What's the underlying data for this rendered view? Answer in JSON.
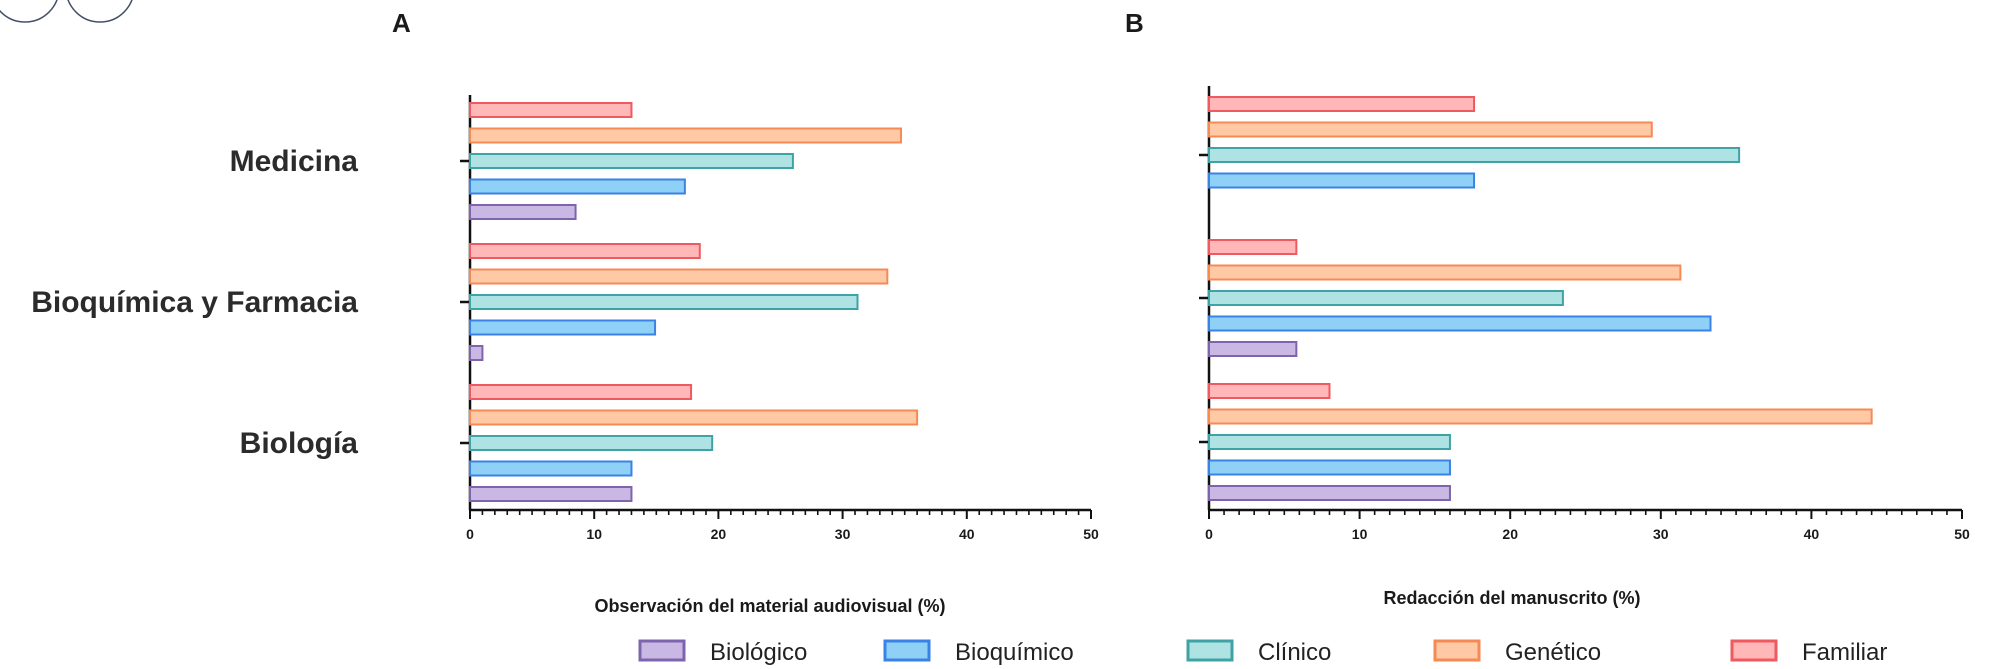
{
  "legend": [
    {
      "label": "Biológico",
      "fill": "#c9b8e3",
      "stroke": "#7d64ad"
    },
    {
      "label": "Bioquímico",
      "fill": "#8fd0f7",
      "stroke": "#3b82e6"
    },
    {
      "label": "Clínico",
      "fill": "#aee2e3",
      "stroke": "#3fa3a5"
    },
    {
      "label": "Genético",
      "fill": "#ffc9a6",
      "stroke": "#f58a55"
    },
    {
      "label": "Familiar",
      "fill": "#ffb7b7",
      "stroke": "#ee5a5f"
    }
  ],
  "chart_data": [
    {
      "type": "bar",
      "orientation": "horizontal",
      "panel": "A",
      "categories": [
        "Medicina",
        "Bioquímica y Farmacia",
        "Biología"
      ],
      "xlabel": "Observación del material audiovisual (%)",
      "xlim": [
        0,
        50
      ],
      "xticks": [
        0,
        10,
        20,
        30,
        40,
        50
      ],
      "series": [
        {
          "name": "Biológico",
          "values": [
            8.5,
            1,
            13
          ]
        },
        {
          "name": "Bioquímico",
          "values": [
            17.3,
            14.9,
            13
          ]
        },
        {
          "name": "Clínico",
          "values": [
            26,
            31.2,
            19.5
          ]
        },
        {
          "name": "Genético",
          "values": [
            34.7,
            33.6,
            36
          ]
        },
        {
          "name": "Familiar",
          "values": [
            13,
            18.5,
            17.8
          ]
        }
      ]
    },
    {
      "type": "bar",
      "orientation": "horizontal",
      "panel": "B",
      "categories": [
        "Medicina",
        "Bioquímica y Farmacia",
        "Biología"
      ],
      "xlabel": "Redacción del manuscrito (%)",
      "xlim": [
        0,
        50
      ],
      "xticks": [
        0,
        10,
        20,
        30,
        40,
        50
      ],
      "series": [
        {
          "name": "Biológico",
          "values": [
            0,
            5.8,
            16
          ]
        },
        {
          "name": "Bioquímico",
          "values": [
            17.6,
            33.3,
            16
          ]
        },
        {
          "name": "Clínico",
          "values": [
            35.2,
            23.5,
            16
          ]
        },
        {
          "name": "Genético",
          "values": [
            29.4,
            31.3,
            44
          ]
        },
        {
          "name": "Familiar",
          "values": [
            17.6,
            5.8,
            8
          ]
        }
      ]
    }
  ]
}
